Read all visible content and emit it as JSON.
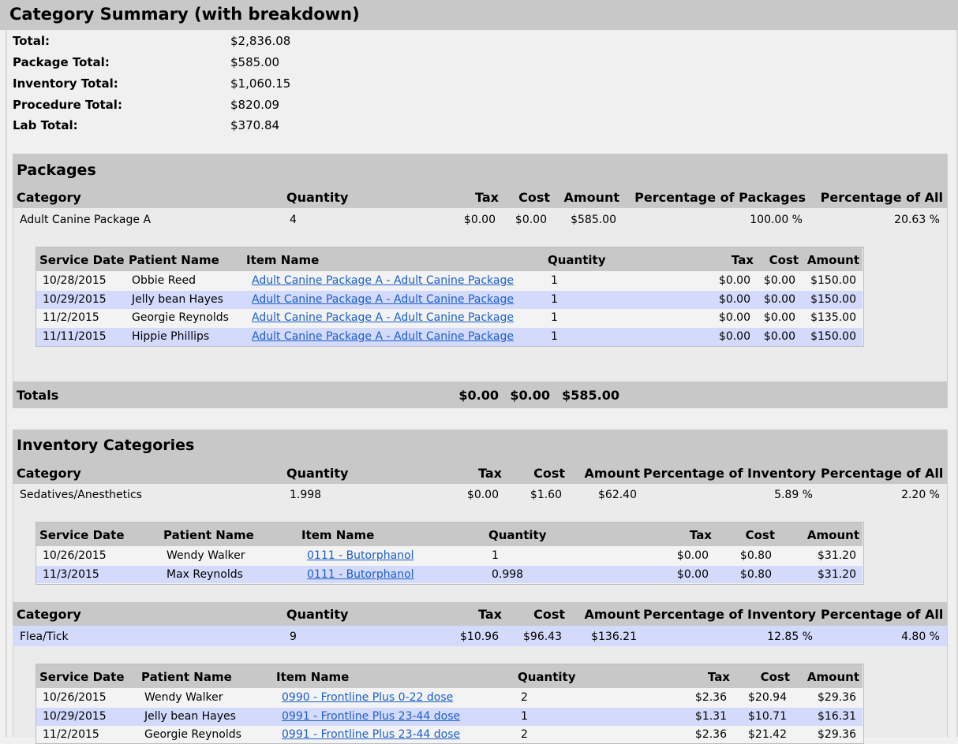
{
  "title": "Category Summary (with breakdown)",
  "summary": {
    "total_label": "Total:",
    "total": "$2,836.08",
    "package_label": "Package Total:",
    "package": "$585.00",
    "inventory_label": "Inventory Total:",
    "inventory": "$1,060.15",
    "procedure_label": "Procedure Total:",
    "procedure": "$820.09",
    "lab_label": "Lab Total:",
    "lab": "$370.84"
  },
  "packages": {
    "title": "Packages",
    "headers": {
      "category": "Category",
      "quantity": "Quantity",
      "tax": "Tax",
      "cost": "Cost",
      "amount": "Amount",
      "pct_section": "Percentage of Packages",
      "pct_all": "Percentage of All"
    },
    "row": {
      "category": "Adult Canine Package A",
      "quantity": "4",
      "tax": "$0.00",
      "cost": "$0.00",
      "amount": "$585.00",
      "pct_section": "100.00 %",
      "pct_all": "20.63 %"
    },
    "detail_headers": {
      "date": "Service Date",
      "patient": "Patient Name",
      "item": "Item Name",
      "quantity": "Quantity",
      "tax": "Tax",
      "cost": "Cost",
      "amount": "Amount"
    },
    "details": [
      {
        "date": "10/28/2015",
        "patient": "Obbie Reed",
        "item": "Adult Canine Package A - Adult Canine Package",
        "quantity": "1",
        "tax": "$0.00",
        "cost": "$0.00",
        "amount": "$150.00"
      },
      {
        "date": "10/29/2015",
        "patient": "Jelly bean Hayes",
        "item": "Adult Canine Package A - Adult Canine Package",
        "quantity": "1",
        "tax": "$0.00",
        "cost": "$0.00",
        "amount": "$150.00"
      },
      {
        "date": "11/2/2015",
        "patient": "Georgie Reynolds",
        "item": "Adult Canine Package A - Adult Canine Package",
        "quantity": "1",
        "tax": "$0.00",
        "cost": "$0.00",
        "amount": "$135.00"
      },
      {
        "date": "11/11/2015",
        "patient": "Hippie Phillips",
        "item": "Adult Canine Package A - Adult Canine Package",
        "quantity": "1",
        "tax": "$0.00",
        "cost": "$0.00",
        "amount": "$150.00"
      }
    ],
    "totals": {
      "label": "Totals",
      "tax": "$0.00",
      "cost": "$0.00",
      "amount": "$585.00"
    }
  },
  "inventory": {
    "title": "Inventory Categories",
    "headers": {
      "category": "Category",
      "quantity": "Quantity",
      "tax": "Tax",
      "cost": "Cost",
      "amount": "Amount",
      "pct_section": "Percentage of Inventory",
      "pct_all": "Percentage of All"
    },
    "cat1": {
      "category": "Sedatives/Anesthetics",
      "quantity": "1.998",
      "tax": "$0.00",
      "cost": "$1.60",
      "amount": "$62.40",
      "pct_section": "5.89 %",
      "pct_all": "2.20 %"
    },
    "detail_headers": {
      "date": "Service Date",
      "patient": "Patient Name",
      "item": "Item Name",
      "quantity": "Quantity",
      "tax": "Tax",
      "cost": "Cost",
      "amount": "Amount"
    },
    "cat1_details": [
      {
        "date": "10/26/2015",
        "patient": "Wendy Walker",
        "item": "0111 - Butorphanol",
        "quantity": "1",
        "tax": "$0.00",
        "cost": "$0.80",
        "amount": "$31.20"
      },
      {
        "date": "11/3/2015",
        "patient": "Max Reynolds",
        "item": "0111 - Butorphanol",
        "quantity": "0.998",
        "tax": "$0.00",
        "cost": "$0.80",
        "amount": "$31.20"
      }
    ],
    "cat2": {
      "category": "Flea/Tick",
      "quantity": "9",
      "tax": "$10.96",
      "cost": "$96.43",
      "amount": "$136.21",
      "pct_section": "12.85 %",
      "pct_all": "4.80 %"
    },
    "cat2_details": [
      {
        "date": "10/26/2015",
        "patient": "Wendy Walker",
        "item": "0990 - Frontline Plus 0-22 dose",
        "quantity": "2",
        "tax": "$2.36",
        "cost": "$20.94",
        "amount": "$29.36"
      },
      {
        "date": "10/29/2015",
        "patient": "Jelly bean Hayes",
        "item": "0991 - Frontline Plus 23-44 dose",
        "quantity": "1",
        "tax": "$1.31",
        "cost": "$10.71",
        "amount": "$16.31"
      },
      {
        "date": "11/2/2015",
        "patient": "Georgie Reynolds",
        "item": "0991 - Frontline Plus 23-44 dose",
        "quantity": "2",
        "tax": "$2.36",
        "cost": "$21.42",
        "amount": "$29.36"
      }
    ]
  },
  "colors": {
    "header_gray": "#c8c8c8",
    "row_lavender": "#d4dafc",
    "link_blue": "#1a5fc8",
    "background": "#f0f0f0"
  }
}
